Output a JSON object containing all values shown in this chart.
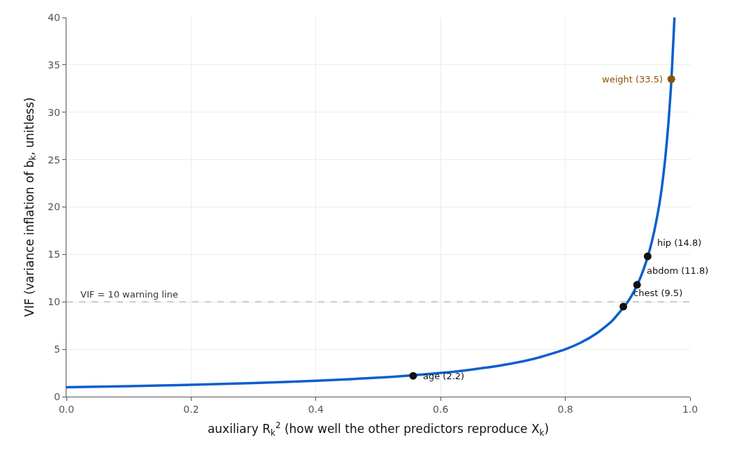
{
  "chart_data": {
    "type": "line",
    "xlabel": "auxiliary R$_{k}$$^{2}$ (how well the other predictors reproduce X$_{k}$)",
    "ylabel": "VIF (variance inflation of b$_{k}$, unitless)",
    "series": [
      {
        "color": "#0a5fcc",
        "x": [
          0,
          0.1,
          0.2,
          0.3,
          0.4,
          0.5,
          0.55,
          0.6,
          0.65,
          0.7,
          0.75,
          0.8,
          0.825,
          0.85,
          0.875,
          0.9,
          0.91,
          0.92,
          0.93,
          0.94,
          0.95,
          0.955,
          0.96,
          0.965,
          0.97,
          0.975
        ],
        "values": [
          1,
          1.11,
          1.25,
          1.43,
          1.67,
          2,
          2.22,
          2.5,
          2.86,
          3.33,
          4,
          5,
          5.71,
          6.67,
          8,
          10,
          11.1,
          12.5,
          14.3,
          16.7,
          20,
          22.2,
          25,
          28.6,
          33.3,
          40
        ]
      },
      {
        "type": "scatter",
        "marker": "circle",
        "x": [
          0.556,
          0.893,
          0.915,
          0.932,
          0.97
        ],
        "values": [
          2.2,
          9.5,
          11.8,
          14.8,
          33.5
        ],
        "colors": [
          "#111111",
          "#111111",
          "#111111",
          "#111111",
          "#8b5500"
        ]
      }
    ],
    "annotations": [
      {
        "text": "age (2.2)",
        "x": 0.556,
        "y": 2.2
      },
      {
        "text": "chest (9.5)",
        "x": 0.893,
        "y": 9.5
      },
      {
        "text": "abdom (11.8)",
        "x": 0.915,
        "y": 11.8
      },
      {
        "text": "hip (14.8)",
        "x": 0.932,
        "y": 14.8
      },
      {
        "text": "weight (33.5)",
        "x": 0.97,
        "y": 33.5
      }
    ],
    "ref_lines": [
      {
        "axis": "y",
        "value": 10,
        "label": "VIF = 10 warning line",
        "color": "#c8c8c8",
        "line_style": "dashed"
      }
    ],
    "xlim": [
      0,
      1
    ],
    "xticks": [
      {
        "value": 0,
        "label": "0.0"
      },
      0.2,
      0.4,
      0.6,
      0.8,
      {
        "value": 1,
        "label": "1.0"
      }
    ],
    "ylim": [
      0,
      40
    ],
    "yticks": [
      0,
      5,
      10,
      15,
      20,
      25,
      30,
      35,
      40
    ],
    "grid": true,
    "line_style": "solid"
  }
}
